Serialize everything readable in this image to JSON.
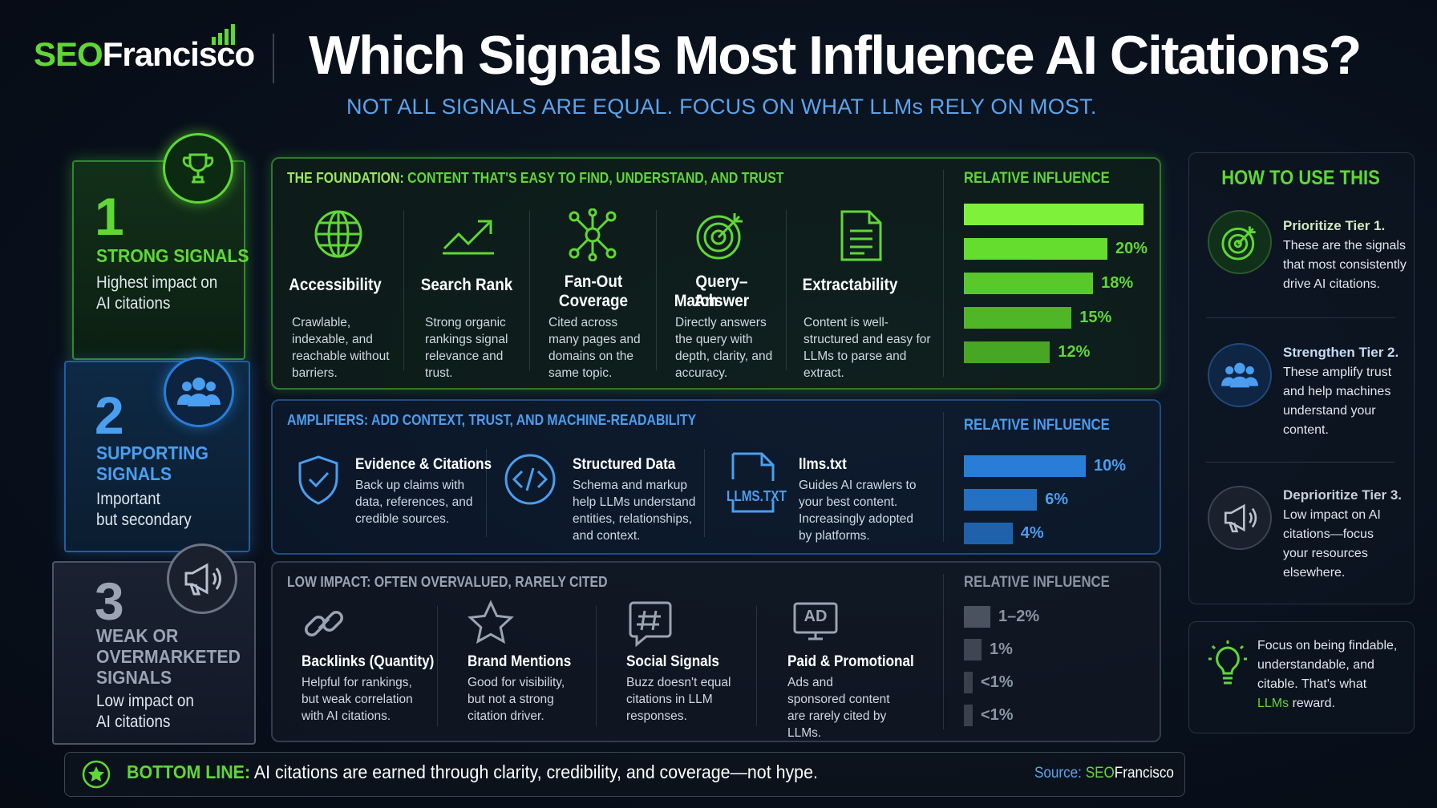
{
  "header": {
    "brand_seo": "SEO",
    "brand_rest": "Francisco",
    "title": "Which Signals Most Influence AI Citations?",
    "subtitle": "NOT ALL SIGNALS ARE EQUAL. FOCUS ON WHAT LLMs RELY ON MOST."
  },
  "tiers": [
    {
      "number": "1",
      "heading_line1": "STRONG SIGNALS",
      "heading_line2": "",
      "heading_line3": "",
      "desc_line1": "Highest impact on",
      "desc_line2": "AI citations",
      "icon": "trophy-icon"
    },
    {
      "number": "2",
      "heading_line1": "SUPPORTING",
      "heading_line2": "SIGNALS",
      "heading_line3": "",
      "desc_line1": "Important",
      "desc_line2": "but secondary",
      "icon": "people-icon"
    },
    {
      "number": "3",
      "heading_line1": "WEAK OR",
      "heading_line2": "OVERMARKETED",
      "heading_line3": "SIGNALS",
      "desc_line1": "Low impact on",
      "desc_line2": "AI citations",
      "icon": "megaphone-icon"
    }
  ],
  "foundation": {
    "label_strong": "THE FOUNDATION:",
    "label_rest": " CONTENT THAT'S EASY TO FIND, UNDERSTAND, AND TRUST",
    "relative_influence": "RELATIVE INFLUENCE",
    "signals": [
      {
        "name_line1": "Accessibility",
        "name_line2": "",
        "desc": "Crawlable, indexable, and reachable without barriers.",
        "icon": "globe-icon"
      },
      {
        "name_line1": "Search Rank",
        "name_line2": "",
        "desc": "Strong organic rankings signal relevance and trust.",
        "icon": "trend-up-icon"
      },
      {
        "name_line1": "Fan-Out",
        "name_line2": "Coverage",
        "desc": "Cited across many pages and domains on the same topic.",
        "icon": "network-icon"
      },
      {
        "name_line1": "Query–Answer",
        "name_line2": "Match",
        "desc": "Directly answers the query with depth, clarity, and accuracy.",
        "icon": "target-icon"
      },
      {
        "name_line1": "Extractability",
        "name_line2": "",
        "desc": "Content is well-structured and easy for LLMs to parse and extract.",
        "icon": "document-icon"
      }
    ],
    "bars": [
      {
        "label": "",
        "value": 25
      },
      {
        "label": "20%",
        "value": 20
      },
      {
        "label": "18%",
        "value": 18
      },
      {
        "label": "15%",
        "value": 15
      },
      {
        "label": "12%",
        "value": 12
      }
    ]
  },
  "amplifiers": {
    "label": "AMPLIFIERS: ADD CONTEXT, TRUST, AND MACHINE-READABILITY",
    "relative_influence": "RELATIVE INFLUENCE",
    "signals": [
      {
        "name": "Evidence & Citations",
        "desc": "Back up claims with data, references, and credible sources.",
        "icon": "shield-check-icon"
      },
      {
        "name": "Structured Data",
        "desc": "Schema and markup help LLMs understand entities, relationships, and context.",
        "icon": "code-icon"
      },
      {
        "name": "llms.txt",
        "desc": "Guides AI crawlers to your best content. Increasingly adopted by platforms.",
        "icon": "file-icon",
        "icon_text": "LLMS.TXT"
      }
    ],
    "bars": [
      {
        "label": "10%",
        "value": 10
      },
      {
        "label": "6%",
        "value": 6
      },
      {
        "label": "4%",
        "value": 4
      }
    ]
  },
  "low_impact": {
    "label": "LOW IMPACT: OFTEN OVERVALUED, RARELY CITED",
    "relative_influence": "RELATIVE INFLUENCE",
    "signals": [
      {
        "name": "Backlinks (Quantity)",
        "desc": "Helpful for rankings, but weak correlation with AI citations.",
        "icon": "link-icon"
      },
      {
        "name": "Brand Mentions",
        "desc": "Good for visibility, but not a strong citation driver.",
        "icon": "star-icon"
      },
      {
        "name": "Social Signals",
        "desc": "Buzz doesn't equal citations in LLM responses.",
        "icon": "hashtag-icon"
      },
      {
        "name": "Paid & Promotional",
        "desc": "Ads and sponsored content are rarely cited by LLMs.",
        "icon": "ad-icon",
        "icon_text": "AD"
      }
    ],
    "bars": [
      {
        "label": "1–2%",
        "value": 1.5
      },
      {
        "label": "1%",
        "value": 1
      },
      {
        "label": "<1%",
        "value": 0.5
      },
      {
        "label": "<1%",
        "value": 0.5
      }
    ]
  },
  "how_to_use": {
    "title": "HOW TO USE THIS",
    "items": [
      {
        "strong": "Prioritize Tier 1.",
        "line1": "These are the signals",
        "line2": "that most consistently",
        "line3": "drive AI citations.",
        "line4": "",
        "icon": "target-icon"
      },
      {
        "strong": "Strengthen Tier 2.",
        "line1": "These amplify trust",
        "line2": "and help machines",
        "line3": "understand your",
        "line4": "content.",
        "icon": "people-icon"
      },
      {
        "strong": "Deprioritize Tier 3.",
        "line1": "Low impact on AI",
        "line2": "citations—focus",
        "line3": "your resources",
        "line4": "elsewhere.",
        "icon": "megaphone-icon"
      }
    ]
  },
  "focus": {
    "line1": "Focus on being findable,",
    "line2": "understandable, and",
    "line3": "citable. That's what",
    "highlight": "LLMs",
    "tail": " reward.",
    "icon": "lightbulb-icon"
  },
  "bottom": {
    "label": "BOTTOM LINE:",
    "text": " AI citations are earned through clarity, credibility, and coverage—not hype.",
    "source_label": "Source: ",
    "source_seo": "SEO",
    "source_rest": "Francisco",
    "icon": "star-badge-icon"
  },
  "colors": {
    "green": "#5fd835",
    "green_bar": "#59cf2c",
    "blue": "#2a7dd6",
    "blue_text": "#5aa4ee",
    "gray": "#4a5260"
  }
}
